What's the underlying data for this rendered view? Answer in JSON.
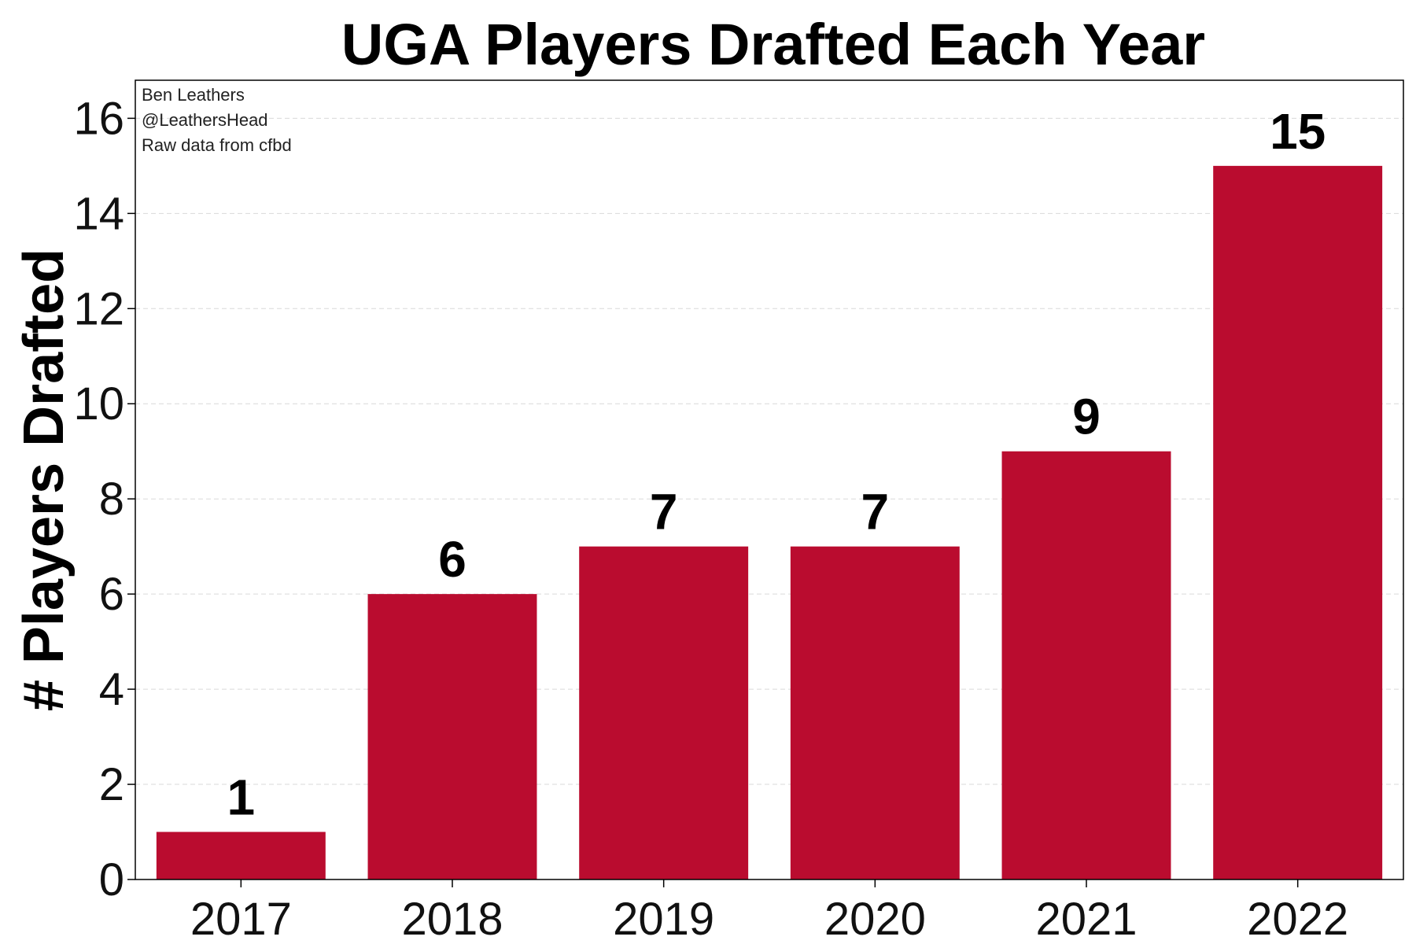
{
  "chart_data": {
    "type": "bar",
    "title": "UGA Players Drafted Each Year",
    "xlabel": "",
    "ylabel": "# Players Drafted",
    "categories": [
      "2017",
      "2018",
      "2019",
      "2020",
      "2021",
      "2022"
    ],
    "values": [
      1,
      6,
      7,
      7,
      9,
      15
    ],
    "data_labels": [
      "1",
      "6",
      "7",
      "7",
      "9",
      "15"
    ],
    "ylim": [
      0,
      16.8
    ],
    "yticks": [
      0,
      2,
      4,
      6,
      8,
      10,
      12,
      14,
      16
    ],
    "grid": "horizontal dashed",
    "bar_color": "#BA0C2F",
    "annotations": [
      "Ben Leathers",
      "@LeathersHead",
      "Raw data from cfbd"
    ]
  }
}
